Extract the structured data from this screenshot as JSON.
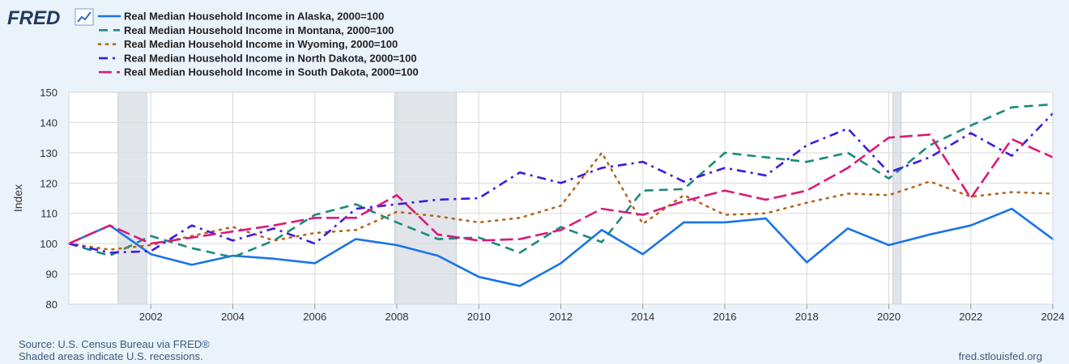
{
  "brand": {
    "logo_text": "FRED",
    "logo_icon": "line-chart-icon"
  },
  "footer": {
    "source": "Source: U.S. Census Bureau via FRED®",
    "shade_note": "Shaded areas indicate U.S. recessions.",
    "site": "fred.stlouisfed.org"
  },
  "chart_data": {
    "type": "line",
    "ylabel": "Index",
    "xlabel": "",
    "xlim": [
      2000,
      2024
    ],
    "ylim": [
      80,
      150
    ],
    "yticks": [
      80,
      90,
      100,
      110,
      120,
      130,
      140,
      150
    ],
    "xticks": [
      2002,
      2004,
      2006,
      2008,
      2010,
      2012,
      2014,
      2016,
      2018,
      2020,
      2022,
      2024
    ],
    "grid": true,
    "legend_position": "top-left",
    "recessions": [
      [
        2001.2,
        2001.9
      ],
      [
        2007.95,
        2009.45
      ],
      [
        2020.1,
        2020.3
      ]
    ],
    "x": [
      2000,
      2001,
      2002,
      2003,
      2004,
      2005,
      2006,
      2007,
      2008,
      2009,
      2010,
      2011,
      2012,
      2013,
      2014,
      2015,
      2016,
      2017,
      2018,
      2019,
      2020,
      2021,
      2022,
      2023,
      2024
    ],
    "series": [
      {
        "name": "Real Median Household Income in Alaska, 2000=100",
        "color": "#1a73e8",
        "dash": "solid",
        "values": [
          100,
          106,
          96.5,
          93,
          96,
          95,
          93.5,
          101.5,
          99.5,
          96,
          89,
          86,
          93.5,
          104.5,
          96.5,
          107,
          107,
          108.3,
          93.8,
          105,
          99.5,
          103,
          106,
          111.5,
          101.5
        ]
      },
      {
        "name": "Real Median Household Income in Montana, 2000=100",
        "color": "#1a8a7c",
        "dash": "dash",
        "values": [
          100,
          96,
          102.5,
          98.5,
          95.5,
          101,
          109.5,
          113,
          107,
          101.5,
          102,
          97,
          105.5,
          100.5,
          117.5,
          118,
          130,
          128.5,
          127,
          130,
          121.5,
          132.5,
          139,
          145,
          146
        ]
      },
      {
        "name": "Real Median Household Income in Wyoming, 2000=100",
        "color": "#b5651d",
        "dash": "dot",
        "values": [
          100,
          98,
          99.5,
          102.5,
          105.5,
          101,
          103.5,
          104.5,
          110.5,
          109,
          107,
          108.5,
          112.5,
          130,
          106.5,
          116,
          109.5,
          110,
          113.5,
          116.5,
          116,
          120.5,
          115.5,
          117,
          116.5
        ]
      },
      {
        "name": "Real Median Household Income in North Dakota, 2000=100",
        "color": "#3e1ae0",
        "dash": "dashdot",
        "values": [
          100,
          97,
          97.5,
          106,
          101,
          105,
          100,
          111.5,
          113,
          114.5,
          115,
          123.5,
          120,
          125,
          127,
          120.5,
          125,
          122.5,
          132.5,
          138,
          123.5,
          128.5,
          136.5,
          129,
          143
        ]
      },
      {
        "name": "Real Median Household Income in South Dakota, 2000=100",
        "color": "#d81b7b",
        "dash": "longdash",
        "values": [
          100,
          106,
          100,
          102,
          104,
          106,
          108.5,
          108.5,
          116,
          103,
          101,
          101.5,
          104.5,
          111.5,
          109.5,
          114,
          117.5,
          114.5,
          117.5,
          125,
          135,
          136,
          115,
          134.5,
          128.5
        ]
      }
    ]
  }
}
